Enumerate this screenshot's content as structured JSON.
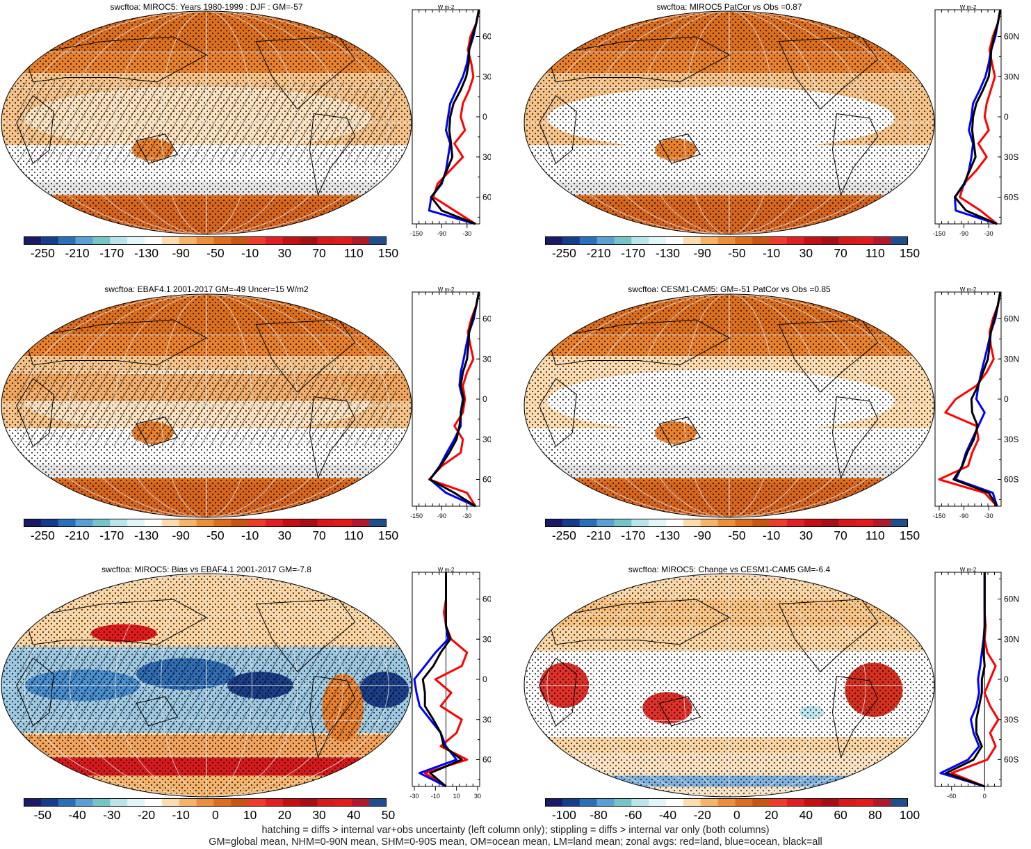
{
  "palette": {
    "abs": [
      "#1b1b6e",
      "#173f8a",
      "#2166ac",
      "#4393c3",
      "#7ec6cf",
      "#bfe8ee",
      "#e3f4f6",
      "#ffffff",
      "#ffe0b8",
      "#f6b36a",
      "#e8812e",
      "#d6651e",
      "#ef3b2c",
      "#d7301f",
      "#bd1414",
      "#990000",
      "#d73027",
      "#e31a1c",
      "#b2182b",
      "#ca0020",
      "#08519c"
    ],
    "diff": [
      "#1b1b6e",
      "#173f8a",
      "#2166ac",
      "#4393c3",
      "#7ec6cf",
      "#bfe8ee",
      "#e3f4f6",
      "#ffffff",
      "#ffe0b8",
      "#f6b36a",
      "#e8812e",
      "#d6651e",
      "#ef3b2c",
      "#d7301f",
      "#bd1414",
      "#990000",
      "#d73027",
      "#e31a1c",
      "#b2182b",
      "#ca0020",
      "#08519c"
    ],
    "land_color": "#b85c14",
    "ocean_color": "#f0a050",
    "series_land": "#ff0000",
    "series_ocean": "#0000ff",
    "series_all": "#000000"
  },
  "chart_data": [
    {
      "type": "map+zonal",
      "title": "swcftoa: MIROC5: Years 1980-1999 : DJF : GM=-57",
      "colorbar_labels": [
        "-250",
        "-210",
        "-170",
        "-130",
        "-90",
        "-50",
        "-10",
        "30",
        "70",
        "110",
        "150"
      ],
      "zonal_unit": "W m-2",
      "zonal_xticks": [
        "-150",
        "-90",
        "-30"
      ],
      "zonal_xrange": [
        -160,
        0
      ],
      "lat_ticks": [
        "60N",
        "30N",
        "0",
        "30S",
        "60S"
      ],
      "pattern": "tropics-hatched",
      "series": [
        {
          "name": "land",
          "lat": [
            -80,
            -70,
            -60,
            -50,
            -40,
            -30,
            -20,
            -10,
            0,
            10,
            20,
            30,
            40,
            50,
            60,
            70,
            80
          ],
          "values": [
            -10,
            -60,
            -110,
            -100,
            -70,
            -40,
            -60,
            -35,
            -45,
            -40,
            -25,
            -15,
            -20,
            -28,
            -22,
            -8,
            -2
          ]
        },
        {
          "name": "ocean",
          "lat": [
            -80,
            -70,
            -60,
            -50,
            -40,
            -30,
            -20,
            -10,
            0,
            10,
            20,
            30,
            40,
            50,
            60,
            70,
            80
          ],
          "values": [
            -10,
            -120,
            -115,
            -90,
            -80,
            -75,
            -70,
            -80,
            -75,
            -70,
            -55,
            -40,
            -30,
            -25,
            -15,
            -8,
            -2
          ]
        },
        {
          "name": "all",
          "lat": [
            -80,
            -70,
            -60,
            -50,
            -40,
            -30,
            -20,
            -10,
            0,
            10,
            20,
            30,
            40,
            50,
            60,
            70,
            80
          ],
          "values": [
            -10,
            -90,
            -115,
            -92,
            -78,
            -65,
            -68,
            -72,
            -70,
            -62,
            -45,
            -32,
            -26,
            -25,
            -18,
            -8,
            -2
          ]
        }
      ]
    },
    {
      "type": "map+zonal",
      "title": "swcftoa: MIROC5 PatCor vs Obs =0.87",
      "colorbar_labels": [
        "-250",
        "-210",
        "-170",
        "-130",
        "-90",
        "-50",
        "-10",
        "30",
        "70",
        "110",
        "150"
      ],
      "zonal_unit": "W m-2",
      "zonal_xticks": [
        "-150",
        "-90",
        "-30"
      ],
      "zonal_xrange": [
        -160,
        0
      ],
      "lat_ticks": [
        "60N",
        "30N",
        "0",
        "30S",
        "60S"
      ],
      "pattern": "stippled",
      "series": [
        {
          "name": "land",
          "lat": [
            -80,
            -70,
            -60,
            -50,
            -40,
            -30,
            -20,
            -10,
            0,
            10,
            20,
            30,
            40,
            50,
            60,
            70,
            80
          ],
          "values": [
            -10,
            -50,
            -100,
            -90,
            -60,
            -35,
            -55,
            -30,
            -40,
            -35,
            -25,
            -15,
            -22,
            -28,
            -20,
            -8,
            -2
          ]
        },
        {
          "name": "ocean",
          "lat": [
            -80,
            -70,
            -60,
            -50,
            -40,
            -30,
            -20,
            -10,
            0,
            10,
            20,
            30,
            40,
            50,
            60,
            70,
            80
          ],
          "values": [
            -10,
            -110,
            -112,
            -88,
            -78,
            -72,
            -68,
            -78,
            -72,
            -68,
            -52,
            -38,
            -30,
            -24,
            -14,
            -8,
            -2
          ]
        },
        {
          "name": "all",
          "lat": [
            -80,
            -70,
            -60,
            -50,
            -40,
            -30,
            -20,
            -10,
            0,
            10,
            20,
            30,
            40,
            50,
            60,
            70,
            80
          ],
          "values": [
            -10,
            -85,
            -112,
            -90,
            -76,
            -62,
            -66,
            -70,
            -68,
            -60,
            -44,
            -30,
            -26,
            -24,
            -17,
            -8,
            -2
          ]
        }
      ]
    },
    {
      "type": "map+zonal",
      "title": "swcftoa: EBAF4.1 2001-2017 GM=-49 Uncer=15 W/m2",
      "colorbar_labels": [
        "-250",
        "-210",
        "-170",
        "-130",
        "-90",
        "-50",
        "-10",
        "30",
        "70",
        "110",
        "150"
      ],
      "zonal_unit": "W m-2",
      "zonal_xticks": [
        "-150",
        "-90",
        "-30"
      ],
      "zonal_xrange": [
        -160,
        0
      ],
      "lat_ticks": [
        "60N",
        "30N",
        "0",
        "30S",
        "60S"
      ],
      "pattern": "tropics-hatched",
      "series": [
        {
          "name": "land",
          "lat": [
            -80,
            -70,
            -60,
            -50,
            -40,
            -30,
            -20,
            -10,
            0,
            10,
            20,
            30,
            40,
            50,
            60,
            70,
            80
          ],
          "values": [
            -10,
            -30,
            -120,
            -90,
            -45,
            -40,
            -60,
            -40,
            -35,
            -40,
            -30,
            -15,
            -22,
            -28,
            -20,
            -8,
            -2
          ]
        },
        {
          "name": "ocean",
          "lat": [
            -80,
            -70,
            -60,
            -50,
            -40,
            -30,
            -20,
            -10,
            0,
            10,
            20,
            30,
            40,
            50,
            60,
            70,
            80
          ],
          "values": [
            -10,
            -80,
            -118,
            -95,
            -78,
            -60,
            -45,
            -45,
            -40,
            -48,
            -45,
            -38,
            -32,
            -25,
            -14,
            -8,
            -2
          ]
        },
        {
          "name": "all",
          "lat": [
            -80,
            -70,
            -60,
            -50,
            -40,
            -30,
            -20,
            -10,
            0,
            10,
            20,
            30,
            40,
            50,
            60,
            70,
            80
          ],
          "values": [
            -10,
            -60,
            -118,
            -93,
            -72,
            -55,
            -48,
            -44,
            -38,
            -45,
            -40,
            -30,
            -27,
            -25,
            -17,
            -8,
            -2
          ]
        }
      ]
    },
    {
      "type": "map+zonal",
      "title": "swcftoa: CESM1-CAM5: GM=-51 PatCor vs Obs =0.85",
      "colorbar_labels": [
        "-250",
        "-210",
        "-170",
        "-130",
        "-90",
        "-50",
        "-10",
        "30",
        "70",
        "110",
        "150"
      ],
      "zonal_unit": "W m-2",
      "zonal_xticks": [
        "-150",
        "-90",
        "-30"
      ],
      "zonal_xrange": [
        -160,
        0
      ],
      "lat_ticks": [
        "60N",
        "30N",
        "0",
        "30S",
        "60S"
      ],
      "pattern": "stippled",
      "series": [
        {
          "name": "land",
          "lat": [
            -80,
            -70,
            -60,
            -50,
            -40,
            -30,
            -20,
            -10,
            0,
            10,
            20,
            30,
            40,
            50,
            60,
            70,
            80
          ],
          "values": [
            -10,
            -40,
            -150,
            -80,
            -70,
            -55,
            -60,
            -135,
            -110,
            -60,
            -35,
            -18,
            -25,
            -28,
            -20,
            -8,
            -2
          ]
        },
        {
          "name": "ocean",
          "lat": [
            -80,
            -70,
            -60,
            -50,
            -40,
            -30,
            -20,
            -10,
            0,
            10,
            20,
            30,
            40,
            50,
            60,
            70,
            80
          ],
          "values": [
            -10,
            -20,
            -110,
            -95,
            -85,
            -70,
            -55,
            -40,
            -60,
            -55,
            -48,
            -40,
            -32,
            -25,
            -14,
            -8,
            -2
          ]
        },
        {
          "name": "all",
          "lat": [
            -80,
            -70,
            -60,
            -50,
            -40,
            -30,
            -20,
            -10,
            0,
            10,
            20,
            30,
            40,
            50,
            60,
            70,
            80
          ],
          "values": [
            -10,
            -30,
            -115,
            -94,
            -82,
            -66,
            -57,
            -70,
            -72,
            -56,
            -44,
            -32,
            -28,
            -25,
            -17,
            -8,
            -2
          ]
        }
      ]
    },
    {
      "type": "map+zonal",
      "title": "swcftoa: MIROC5: Bias vs EBAF4.1 2001-2017 GM=-7.8",
      "colorbar_labels": [
        "-50",
        "-40",
        "-30",
        "-20",
        "-10",
        "0",
        "10",
        "20",
        "30",
        "40",
        "50"
      ],
      "zonal_unit": "W m-2",
      "zonal_xticks": [
        "-30",
        "-10",
        "10",
        "30"
      ],
      "zonal_xrange": [
        -32,
        32
      ],
      "lat_ticks": [
        "60N",
        "30N",
        "0",
        "30S",
        "60S"
      ],
      "pattern": "bias-hatched",
      "series": [
        {
          "name": "land",
          "lat": [
            -80,
            -70,
            -60,
            -50,
            -40,
            -30,
            -20,
            -10,
            0,
            10,
            20,
            30,
            40,
            50,
            60,
            70,
            80
          ],
          "values": [
            0,
            -20,
            20,
            -5,
            10,
            15,
            -5,
            5,
            -10,
            15,
            20,
            5,
            0,
            -2,
            0,
            0,
            0
          ]
        },
        {
          "name": "ocean",
          "lat": [
            -80,
            -70,
            -60,
            -50,
            -40,
            -30,
            -20,
            -10,
            0,
            10,
            20,
            30,
            40,
            50,
            60,
            70,
            80
          ],
          "values": [
            0,
            -25,
            10,
            0,
            -5,
            -15,
            -25,
            -28,
            -30,
            -20,
            -10,
            2,
            0,
            0,
            0,
            0,
            0
          ]
        },
        {
          "name": "all",
          "lat": [
            -80,
            -70,
            -60,
            -50,
            -40,
            -30,
            -20,
            -10,
            0,
            10,
            20,
            30,
            40,
            50,
            60,
            70,
            80
          ],
          "values": [
            0,
            -15,
            15,
            -2,
            -5,
            -12,
            -20,
            -20,
            -22,
            -12,
            -5,
            4,
            0,
            0,
            0,
            0,
            0
          ]
        }
      ]
    },
    {
      "type": "map+zonal",
      "title": "swcftoa: MIROC5: Change vs CESM1-CAM5 GM=-6.4",
      "colorbar_labels": [
        "-100",
        "-80",
        "-60",
        "-40",
        "-20",
        "0",
        "20",
        "40",
        "60",
        "80",
        "100"
      ],
      "zonal_unit": "W m-2",
      "zonal_xticks": [
        "-60",
        "0"
      ],
      "zonal_xrange": [
        -90,
        30
      ],
      "lat_ticks": [
        "60N",
        "30N",
        "0",
        "30S",
        "60S"
      ],
      "pattern": "stippled",
      "series": [
        {
          "name": "land",
          "lat": [
            -80,
            -70,
            -60,
            -50,
            -40,
            -30,
            -20,
            -10,
            0,
            10,
            20,
            30,
            40,
            50,
            60,
            70,
            80
          ],
          "values": [
            0,
            -60,
            5,
            20,
            10,
            25,
            10,
            0,
            10,
            20,
            5,
            0,
            2,
            0,
            0,
            0,
            0
          ]
        },
        {
          "name": "ocean",
          "lat": [
            -80,
            -70,
            -60,
            -50,
            -40,
            -30,
            -20,
            -10,
            0,
            10,
            20,
            30,
            40,
            50,
            60,
            70,
            80
          ],
          "values": [
            0,
            -80,
            -30,
            -10,
            -20,
            -25,
            -15,
            -10,
            -12,
            -8,
            -5,
            -2,
            0,
            0,
            0,
            0,
            0
          ]
        },
        {
          "name": "all",
          "lat": [
            -80,
            -70,
            -60,
            -50,
            -40,
            -30,
            -20,
            -10,
            0,
            10,
            20,
            30,
            40,
            50,
            60,
            70,
            80
          ],
          "values": [
            0,
            -70,
            -20,
            -5,
            -15,
            -15,
            -10,
            -5,
            -5,
            0,
            -2,
            -1,
            0,
            0,
            0,
            0,
            0
          ]
        }
      ]
    }
  ],
  "footer": {
    "line1": "hatching = diffs > internal var+obs uncertainty (left column only); stippling = diffs > internal var only (both columns)",
    "line2": "GM=global mean, NHM=0-90N mean, SHM=0-90S mean, OM=ocean mean, LM=land mean; zonal avgs: red=land, blue=ocean, black=all"
  }
}
